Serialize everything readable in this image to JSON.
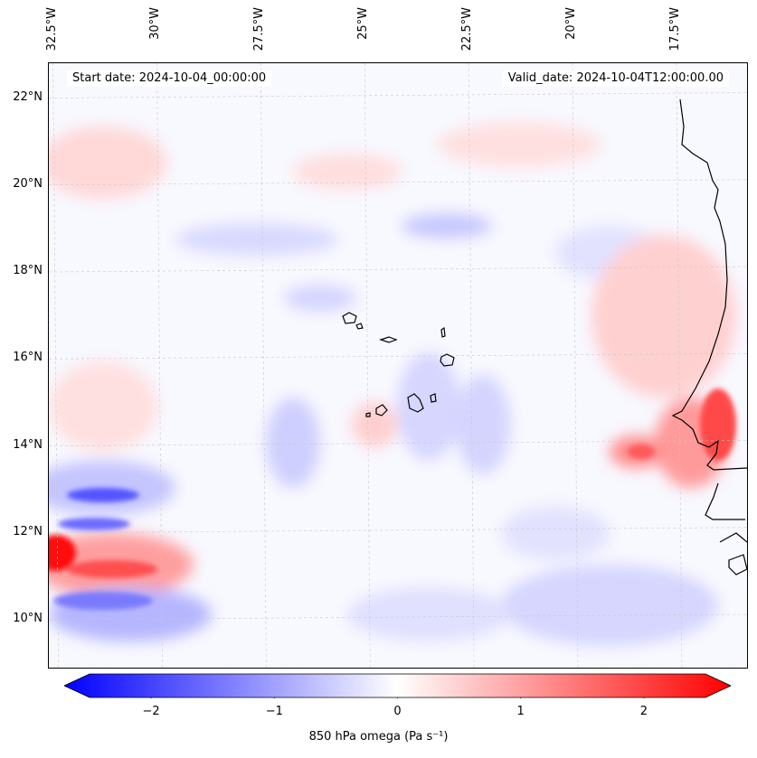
{
  "map": {
    "start_date": "Start date: 2024-10-04_00:00:00",
    "valid_date": "Valid_date: 2024-10-04T12:00:00.00",
    "lon_labels": [
      {
        "value": -32.5,
        "text": "32.5°W"
      },
      {
        "value": -30.0,
        "text": "30°W"
      },
      {
        "value": -27.5,
        "text": "27.5°W"
      },
      {
        "value": -25.0,
        "text": "25°W"
      },
      {
        "value": -22.5,
        "text": "22.5°W"
      },
      {
        "value": -20.0,
        "text": "20°W"
      },
      {
        "value": -17.5,
        "text": "17.5°W"
      }
    ],
    "lat_labels": [
      {
        "value": 22,
        "text": "22°N"
      },
      {
        "value": 20,
        "text": "20°N"
      },
      {
        "value": 18,
        "text": "18°N"
      },
      {
        "value": 16,
        "text": "16°N"
      },
      {
        "value": 14,
        "text": "14°N"
      },
      {
        "value": 12,
        "text": "12°N"
      },
      {
        "value": 10,
        "text": "10°N"
      }
    ],
    "lon_range": [
      -32.6,
      -15.8
    ],
    "lat_range": [
      8.9,
      22.8
    ]
  },
  "colorbar": {
    "label": "850 hPa omega (Pa s⁻¹)",
    "range": [
      -2.5,
      2.5
    ],
    "ticks": [
      {
        "value": -2,
        "text": "−2"
      },
      {
        "value": -1,
        "text": "−1"
      },
      {
        "value": 0,
        "text": "0"
      },
      {
        "value": 1,
        "text": "1"
      },
      {
        "value": 2,
        "text": "2"
      }
    ],
    "colors": {
      "min": "#0000ff",
      "mid": "#ffffff",
      "max": "#ff0000"
    },
    "extend": "both"
  }
}
